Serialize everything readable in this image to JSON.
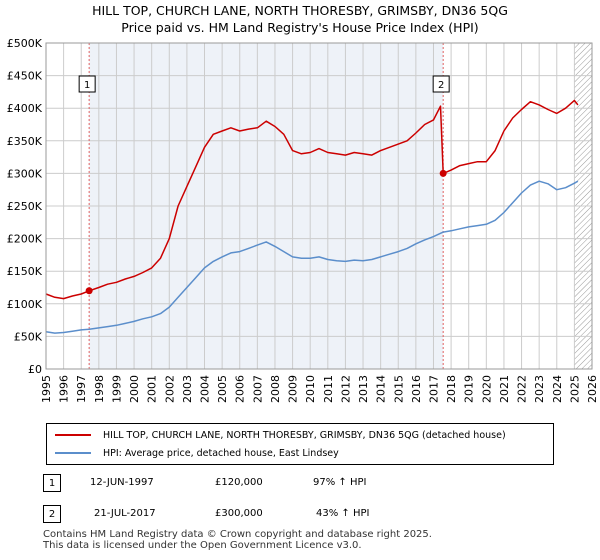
{
  "title_line1": "HILL TOP, CHURCH LANE, NORTH THORESBY, GRIMSBY, DN36 5QG",
  "title_line2": "Price paid vs. HM Land Registry's House Price Index (HPI)",
  "legend": {
    "property_label": "HILL TOP, CHURCH LANE, NORTH THORESBY, GRIMSBY, DN36 5QG (detached house)",
    "hpi_label": "HPI: Average price, detached house, East Lindsey"
  },
  "transactions": [
    {
      "num": "1",
      "date": "12-JUN-1997",
      "price": "£120,000",
      "hpi": "97% ↑ HPI"
    },
    {
      "num": "2",
      "date": "21-JUL-2017",
      "price": "£300,000",
      "hpi": "43% ↑ HPI"
    }
  ],
  "footer": {
    "line1": "Contains HM Land Registry data © Crown copyright and database right 2025.",
    "line2": "This data is licensed under the Open Government Licence v3.0."
  },
  "colors": {
    "property": "#cc0000",
    "hpi": "#5b8ecb",
    "grid": "#cccccc",
    "bg": "#eef2f8"
  },
  "chart_data": {
    "type": "line",
    "xlim": [
      1995,
      2026
    ],
    "ylim": [
      0,
      500000
    ],
    "x_ticks": [
      1995,
      1996,
      1997,
      1998,
      1999,
      2000,
      2001,
      2002,
      2003,
      2004,
      2005,
      2006,
      2007,
      2008,
      2009,
      2010,
      2011,
      2012,
      2013,
      2014,
      2015,
      2016,
      2017,
      2018,
      2019,
      2020,
      2021,
      2022,
      2023,
      2024,
      2025,
      2026
    ],
    "y_ticks": [
      {
        "v": 0,
        "label": "£0"
      },
      {
        "v": 50000,
        "label": "£50K"
      },
      {
        "v": 100000,
        "label": "£100K"
      },
      {
        "v": 150000,
        "label": "£150K"
      },
      {
        "v": 200000,
        "label": "£200K"
      },
      {
        "v": 250000,
        "label": "£250K"
      },
      {
        "v": 300000,
        "label": "£300K"
      },
      {
        "v": 350000,
        "label": "£350K"
      },
      {
        "v": 400000,
        "label": "£400K"
      },
      {
        "v": 450000,
        "label": "£450K"
      },
      {
        "v": 500000,
        "label": "£500K"
      }
    ],
    "shaded_span": [
      1997.45,
      2017.55
    ],
    "hatch_from": 2025.0,
    "series": [
      {
        "name": "HILL TOP, CHURCH LANE, NORTH THORESBY, GRIMSBY, DN36 5QG (detached house)",
        "key": "property",
        "x": [
          1995.0,
          1995.5,
          1996.0,
          1996.5,
          1997.0,
          1997.45,
          1998.0,
          1998.5,
          1999.0,
          1999.5,
          2000.0,
          2000.5,
          2001.0,
          2001.5,
          2002.0,
          2002.5,
          2003.0,
          2003.5,
          2004.0,
          2004.5,
          2005.0,
          2005.5,
          2006.0,
          2006.5,
          2007.0,
          2007.5,
          2008.0,
          2008.5,
          2009.0,
          2009.5,
          2010.0,
          2010.5,
          2011.0,
          2011.5,
          2012.0,
          2012.5,
          2013.0,
          2013.5,
          2014.0,
          2014.5,
          2015.0,
          2015.5,
          2016.0,
          2016.5,
          2017.0,
          2017.4,
          2017.55,
          2018.0,
          2018.5,
          2019.0,
          2019.5,
          2020.0,
          2020.5,
          2021.0,
          2021.5,
          2022.0,
          2022.5,
          2023.0,
          2023.5,
          2024.0,
          2024.5,
          2025.0,
          2025.2
        ],
        "y": [
          115000,
          110000,
          108000,
          112000,
          115000,
          120000,
          125000,
          130000,
          133000,
          138000,
          142000,
          148000,
          155000,
          170000,
          200000,
          250000,
          280000,
          310000,
          340000,
          360000,
          365000,
          370000,
          365000,
          368000,
          370000,
          380000,
          372000,
          360000,
          335000,
          330000,
          332000,
          338000,
          332000,
          330000,
          328000,
          332000,
          330000,
          328000,
          335000,
          340000,
          345000,
          350000,
          362000,
          375000,
          382000,
          403000,
          300000,
          305000,
          312000,
          315000,
          318000,
          318000,
          335000,
          365000,
          385000,
          398000,
          410000,
          405000,
          398000,
          392000,
          400000,
          412000,
          405000
        ]
      },
      {
        "name": "HPI: Average price, detached house, East Lindsey",
        "key": "hpi",
        "x": [
          1995.0,
          1995.5,
          1996.0,
          1996.5,
          1997.0,
          1997.45,
          1998.0,
          1998.5,
          1999.0,
          1999.5,
          2000.0,
          2000.5,
          2001.0,
          2001.5,
          2002.0,
          2002.5,
          2003.0,
          2003.5,
          2004.0,
          2004.5,
          2005.0,
          2005.5,
          2006.0,
          2006.5,
          2007.0,
          2007.5,
          2008.0,
          2008.5,
          2009.0,
          2009.5,
          2010.0,
          2010.5,
          2011.0,
          2011.5,
          2012.0,
          2012.5,
          2013.0,
          2013.5,
          2014.0,
          2014.5,
          2015.0,
          2015.5,
          2016.0,
          2016.5,
          2017.0,
          2017.55,
          2018.0,
          2018.5,
          2019.0,
          2019.5,
          2020.0,
          2020.5,
          2021.0,
          2021.5,
          2022.0,
          2022.5,
          2023.0,
          2023.5,
          2024.0,
          2024.5,
          2025.0,
          2025.2
        ],
        "y": [
          57000,
          55000,
          56000,
          58000,
          60000,
          61000,
          63000,
          65000,
          67000,
          70000,
          73000,
          77000,
          80000,
          85000,
          95000,
          110000,
          125000,
          140000,
          155000,
          165000,
          172000,
          178000,
          180000,
          185000,
          190000,
          195000,
          188000,
          180000,
          172000,
          170000,
          170000,
          172000,
          168000,
          166000,
          165000,
          167000,
          166000,
          168000,
          172000,
          176000,
          180000,
          185000,
          192000,
          198000,
          203000,
          210000,
          212000,
          215000,
          218000,
          220000,
          222000,
          228000,
          240000,
          255000,
          270000,
          282000,
          288000,
          284000,
          275000,
          278000,
          285000,
          288000
        ]
      }
    ],
    "annotations": [
      {
        "label": "1",
        "x": 1997.45,
        "y": 120000
      },
      {
        "label": "2",
        "x": 2017.55,
        "y": 300000
      }
    ]
  }
}
